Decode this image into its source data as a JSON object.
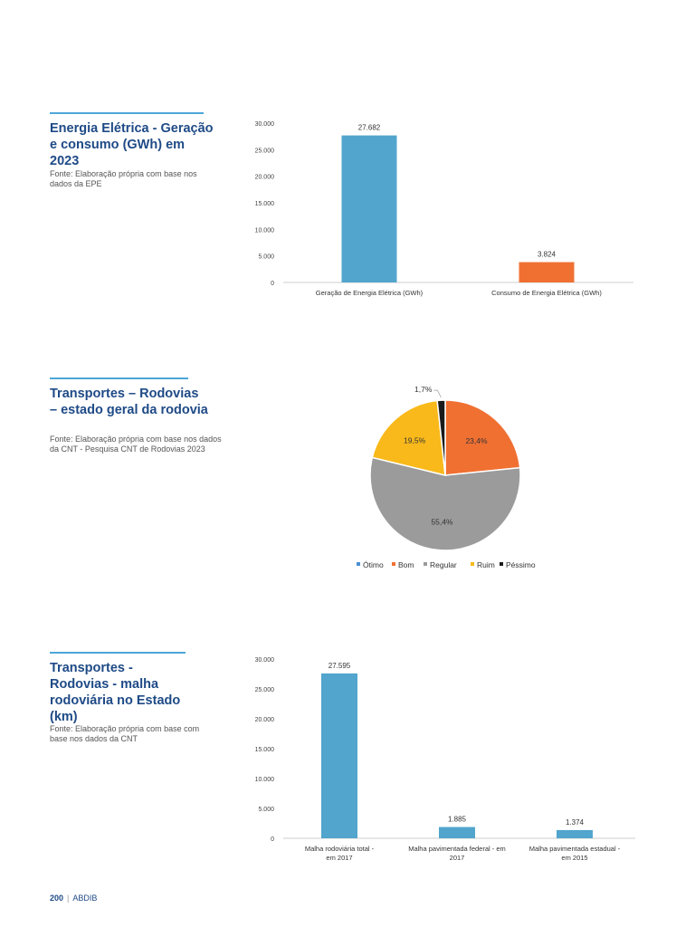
{
  "sections": [
    {
      "title": "Energia Elétrica - Geração e consumo (GWh) em 2023",
      "source": "Fonte: Elaboração própria com base nos dados da EPE"
    },
    {
      "title": "Transportes – Rodovias – estado geral da rodovia",
      "source": "Fonte: Elaboração própria com base nos dados da CNT - Pesquisa CNT de Rodovias 2023"
    },
    {
      "title": "Transportes - Rodovias - malha rodoviária no Estado (km)",
      "source": "Fonte: Elaboração própria com base com base nos dados da CNT"
    }
  ],
  "chart_data": [
    {
      "type": "bar",
      "categories": [
        "Geração de Energia Elétrica (GWh)",
        "Consumo de Energia Elétrica (GWh)"
      ],
      "values": [
        27682,
        3824
      ],
      "value_labels": [
        "27.682",
        "3.824"
      ],
      "colors": [
        "#52a5cc",
        "#f07032"
      ],
      "ylim": [
        0,
        30000
      ],
      "yticks": [
        "0",
        "5.000",
        "10.000",
        "15.000",
        "20.000",
        "25.000",
        "30.000"
      ],
      "grid": false
    },
    {
      "type": "pie",
      "categories": [
        "Ótimo",
        "Bom",
        "Regular",
        "Ruim",
        "Péssimo"
      ],
      "values": [
        0,
        23.4,
        55.4,
        19.5,
        1.7
      ],
      "value_labels": [
        "",
        "23,4%",
        "55,4%",
        "19,5%",
        "1,7%"
      ],
      "colors": [
        "#4a90d0",
        "#f07032",
        "#9b9b9b",
        "#f9b91b",
        "#1a1a1a"
      ],
      "legend": "bottom"
    },
    {
      "type": "bar",
      "categories": [
        "Malha rodoviária total - em 2017",
        "Malha pavimentada federal - em 2017",
        "Malha pavimentada estadual - em 2015"
      ],
      "category_lines": [
        [
          "Malha rodoviária total -",
          "em 2017"
        ],
        [
          "Malha pavimentada federal - em",
          "2017"
        ],
        [
          "Malha pavimentada estadual -",
          "em 2015"
        ]
      ],
      "values": [
        27595,
        1885,
        1374
      ],
      "value_labels": [
        "27.595",
        "1.885",
        "1.374"
      ],
      "colors": [
        "#52a5cc",
        "#52a5cc",
        "#52a5cc"
      ],
      "ylim": [
        0,
        30000
      ],
      "yticks": [
        "0",
        "5.000",
        "10.000",
        "15.000",
        "20.000",
        "25.000",
        "30.000"
      ],
      "grid": false
    }
  ],
  "footer": {
    "page": "200",
    "publisher": "ABDIB",
    "separator": "|"
  }
}
